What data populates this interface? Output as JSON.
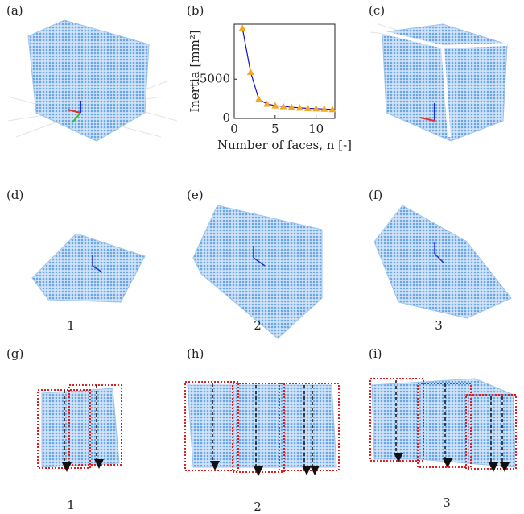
{
  "panels": [
    "(a)",
    "(b)",
    "(c)",
    "(d)",
    "(e)",
    "(f)",
    "(g)",
    "(h)",
    "(i)"
  ],
  "captions": [
    "1",
    "2",
    "3",
    "1",
    "2",
    "3"
  ],
  "chart_data": {
    "type": "line",
    "xlabel": "Number of faces, n [-]",
    "ylabel": "Inertia [mm²]",
    "x": [
      1,
      2,
      3,
      4,
      5,
      6,
      7,
      8,
      9,
      10,
      11,
      12
    ],
    "series": [
      {
        "color": "#1010c8",
        "marker_color": "#f5a623",
        "values": [
          11500,
          5900,
          2450,
          1850,
          1630,
          1530,
          1430,
          1350,
          1280,
          1250,
          1200,
          1150
        ]
      }
    ],
    "xlim": [
      0,
      12.3
    ],
    "ylim": [
      0,
      12000
    ],
    "xticks": [
      0,
      5,
      10
    ],
    "yticks": [
      0,
      5000
    ]
  }
}
